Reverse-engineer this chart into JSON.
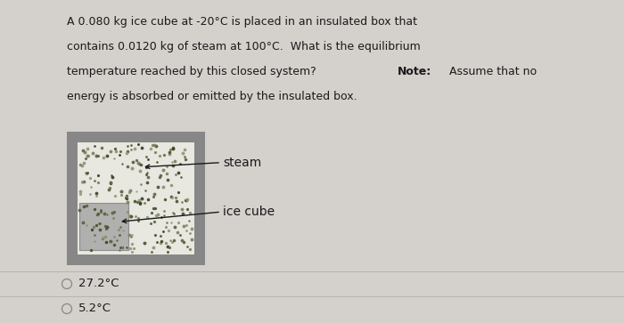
{
  "background_color": "#d4d0cc",
  "question_text_lines": [
    "A 0.080 kg ice cube at -20°C is placed in an insulated box that",
    "contains 0.0120 kg of steam at 100°C.  What is the equilibrium",
    "temperature reached by this closed system?  Note:  Assume that no",
    "energy is absorbed or emitted by the insulated box."
  ],
  "note_line_index": 2,
  "note_before": "temperature reached by this closed system?  ",
  "note_after": "  Assume that no",
  "answer_options": [
    "27.2°C",
    "5.2°C"
  ],
  "label_steam": "steam",
  "label_ice": "ice cube",
  "outer_box_color": "#878787",
  "inner_bg_color": "#e8e8e0",
  "ice_cube_color": "#aaaaaa",
  "text_color": "#1a1a1a",
  "font_size_question": 9.0,
  "font_size_options": 9.5,
  "font_size_labels": 10.0,
  "fig_width": 7.0,
  "fig_height": 3.63,
  "dpi": 100
}
